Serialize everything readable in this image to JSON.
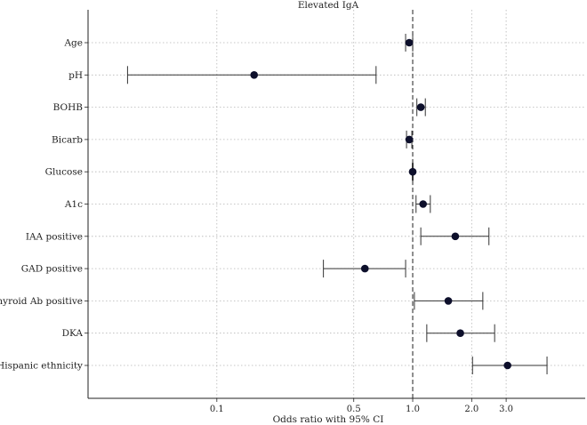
{
  "chart_data": {
    "type": "forest",
    "title": "Elevated IgA",
    "xlabel": "Odds ratio with 95% CI",
    "ylabel": "",
    "x_scale": "log",
    "xlim": [
      0.022,
      7.6
    ],
    "x_ticks": [
      {
        "value": 0.1,
        "label": "0.1"
      },
      {
        "value": 0.5,
        "label": "0.5"
      },
      {
        "value": 1.0,
        "label": "1.0"
      },
      {
        "value": 2.0,
        "label": "2.0"
      },
      {
        "value": 3.0,
        "label": "3.0"
      }
    ],
    "grid": "vertical dotted at ticks and horizontal dotted at each row",
    "reference_line": 1.0,
    "point_color": "#0d0f2b",
    "rows": [
      {
        "label": "Age",
        "or": 0.96,
        "lower": 0.92,
        "upper": 1.0
      },
      {
        "label": "pH",
        "or": 0.155,
        "lower": 0.035,
        "upper": 0.65
      },
      {
        "label": "BOHB",
        "or": 1.1,
        "lower": 1.05,
        "upper": 1.16
      },
      {
        "label": "Bicarb",
        "or": 0.96,
        "lower": 0.93,
        "upper": 0.99
      },
      {
        "label": "Glucose",
        "or": 1.0,
        "lower": 0.995,
        "upper": 1.005
      },
      {
        "label": "A1c",
        "or": 1.13,
        "lower": 1.04,
        "upper": 1.23
      },
      {
        "label": "IAA positive",
        "or": 1.65,
        "lower": 1.1,
        "upper": 2.45
      },
      {
        "label": "GAD positive",
        "or": 0.57,
        "lower": 0.35,
        "upper": 0.92
      },
      {
        "label": "Thyroid Ab positive",
        "or": 1.52,
        "lower": 1.02,
        "upper": 2.28
      },
      {
        "label": "DKA",
        "or": 1.75,
        "lower": 1.18,
        "upper": 2.62
      },
      {
        "label": "Hispanic ethnicity",
        "or": 3.05,
        "lower": 2.02,
        "upper": 4.85
      }
    ]
  }
}
